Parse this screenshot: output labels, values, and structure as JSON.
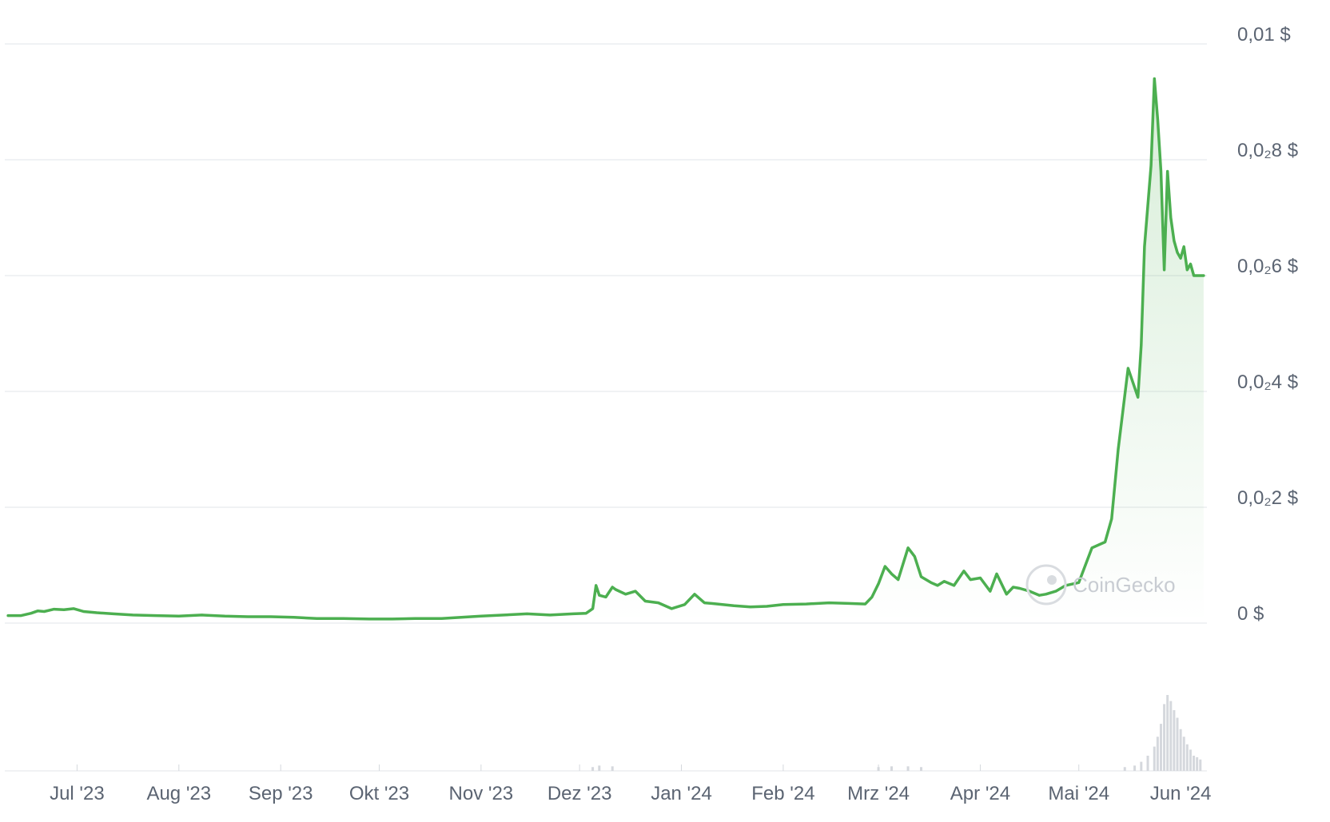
{
  "chart_data": {
    "type": "area",
    "title": "",
    "xlabel": "",
    "ylabel": "",
    "currency_suffix": "$",
    "y_ticks": [
      {
        "value": 0.0,
        "label": "0 $"
      },
      {
        "value": 0.002,
        "label": "0,0₂2 $"
      },
      {
        "value": 0.004,
        "label": "0,0₂4 $"
      },
      {
        "value": 0.006,
        "label": "0,0₂6 $"
      },
      {
        "value": 0.008,
        "label": "0,0₂8 $"
      },
      {
        "value": 0.01,
        "label": "0,01 $"
      }
    ],
    "ylim": [
      0,
      0.01
    ],
    "x_range": [
      "2023-06-09",
      "2024-06-09"
    ],
    "x_ticks": [
      {
        "date": "2023-07-01",
        "label": "Jul '23"
      },
      {
        "date": "2023-08-01",
        "label": "Aug '23"
      },
      {
        "date": "2023-09-01",
        "label": "Sep '23"
      },
      {
        "date": "2023-10-01",
        "label": "Okt '23"
      },
      {
        "date": "2023-11-01",
        "label": "Nov '23"
      },
      {
        "date": "2023-12-01",
        "label": "Dez '23"
      },
      {
        "date": "2024-01-01",
        "label": "Jan '24"
      },
      {
        "date": "2024-02-01",
        "label": "Feb '24"
      },
      {
        "date": "2024-03-01",
        "label": "Mrz '24"
      },
      {
        "date": "2024-04-01",
        "label": "Apr '24"
      },
      {
        "date": "2024-05-01",
        "label": "Mai '24"
      },
      {
        "date": "2024-06-01",
        "label": "Jun '24"
      }
    ],
    "grid": true,
    "line_color": "#4caf50",
    "fill_color": "#4caf50",
    "volume_color": "#d5d8dd",
    "watermark": "CoinGecko",
    "series": [
      {
        "x": [
          "2023-06-10",
          "2023-06-14",
          "2023-06-17",
          "2023-06-19",
          "2023-06-21",
          "2023-06-24",
          "2023-06-27",
          "2023-06-30",
          "2023-07-03",
          "2023-07-07",
          "2023-07-12",
          "2023-07-18",
          "2023-07-25",
          "2023-08-01",
          "2023-08-08",
          "2023-08-15",
          "2023-08-22",
          "2023-08-29",
          "2023-09-05",
          "2023-09-12",
          "2023-09-20",
          "2023-09-28",
          "2023-10-05",
          "2023-10-12",
          "2023-10-20",
          "2023-10-26",
          "2023-11-01",
          "2023-11-08",
          "2023-11-15",
          "2023-11-22",
          "2023-11-29",
          "2023-12-03",
          "2023-12-05",
          "2023-12-06",
          "2023-12-07",
          "2023-12-09",
          "2023-12-11",
          "2023-12-12",
          "2023-12-15",
          "2023-12-18",
          "2023-12-21",
          "2023-12-25",
          "2023-12-29",
          "2024-01-02",
          "2024-01-05",
          "2024-01-08",
          "2024-01-12",
          "2024-01-17",
          "2024-01-22",
          "2024-01-27",
          "2024-02-01",
          "2024-02-08",
          "2024-02-15",
          "2024-02-21",
          "2024-02-26",
          "2024-02-28",
          "2024-03-01",
          "2024-03-03",
          "2024-03-05",
          "2024-03-07",
          "2024-03-10",
          "2024-03-12",
          "2024-03-14",
          "2024-03-17",
          "2024-03-19",
          "2024-03-21",
          "2024-03-24",
          "2024-03-27",
          "2024-03-29",
          "2024-04-01",
          "2024-04-04",
          "2024-04-06",
          "2024-04-09",
          "2024-04-11",
          "2024-04-13",
          "2024-04-16",
          "2024-04-19",
          "2024-04-21",
          "2024-04-24",
          "2024-04-27",
          "2024-05-01",
          "2024-05-05",
          "2024-05-09",
          "2024-05-11",
          "2024-05-13",
          "2024-05-16",
          "2024-05-19",
          "2024-05-20",
          "2024-05-21",
          "2024-05-23",
          "2024-05-24",
          "2024-05-25",
          "2024-05-26",
          "2024-05-27",
          "2024-05-28",
          "2024-05-29",
          "2024-05-30",
          "2024-05-31",
          "2024-06-01",
          "2024-06-02",
          "2024-06-03",
          "2024-06-04",
          "2024-06-05",
          "2024-06-06",
          "2024-06-07",
          "2024-06-08"
        ],
        "y": [
          0.00013,
          0.00013,
          0.00017,
          0.00021,
          0.0002,
          0.00024,
          0.00023,
          0.00025,
          0.0002,
          0.00018,
          0.00016,
          0.00014,
          0.00013,
          0.00012,
          0.00014,
          0.00012,
          0.00011,
          0.00011,
          0.0001,
          8e-05,
          8e-05,
          7e-05,
          7e-05,
          8e-05,
          8e-05,
          0.0001,
          0.00012,
          0.00014,
          0.00016,
          0.00014,
          0.00016,
          0.00017,
          0.00025,
          0.00065,
          0.00048,
          0.00045,
          0.00062,
          0.00058,
          0.0005,
          0.00055,
          0.00038,
          0.00035,
          0.00025,
          0.00032,
          0.0005,
          0.00035,
          0.00033,
          0.0003,
          0.00028,
          0.00029,
          0.00032,
          0.00033,
          0.00035,
          0.00034,
          0.00033,
          0.00045,
          0.00068,
          0.00098,
          0.00085,
          0.00075,
          0.0013,
          0.00115,
          0.0008,
          0.0007,
          0.00065,
          0.00072,
          0.00065,
          0.0009,
          0.00075,
          0.00078,
          0.00055,
          0.00085,
          0.0005,
          0.00062,
          0.0006,
          0.00055,
          0.00048,
          0.0005,
          0.00055,
          0.00065,
          0.0007,
          0.0013,
          0.0014,
          0.0018,
          0.003,
          0.0044,
          0.0039,
          0.0048,
          0.0065,
          0.0079,
          0.0094,
          0.0087,
          0.0078,
          0.0061,
          0.0078,
          0.007,
          0.0066,
          0.0064,
          0.0063,
          0.0065,
          0.0061,
          0.0062,
          0.006,
          0.006,
          0.006,
          0.006
        ]
      }
    ],
    "volume": {
      "x": [
        "2023-12-05",
        "2023-12-07",
        "2023-12-11",
        "2024-03-01",
        "2024-03-05",
        "2024-03-10",
        "2024-03-14",
        "2024-05-15",
        "2024-05-18",
        "2024-05-20",
        "2024-05-22",
        "2024-05-24",
        "2024-05-25",
        "2024-05-26",
        "2024-05-27",
        "2024-05-28",
        "2024-05-29",
        "2024-05-30",
        "2024-05-31",
        "2024-06-01",
        "2024-06-02",
        "2024-06-03",
        "2024-06-04",
        "2024-06-05",
        "2024-06-06",
        "2024-06-07"
      ],
      "y": [
        0.05,
        0.07,
        0.06,
        0.05,
        0.06,
        0.06,
        0.05,
        0.05,
        0.07,
        0.12,
        0.2,
        0.32,
        0.45,
        0.62,
        0.88,
        1.0,
        0.92,
        0.8,
        0.7,
        0.55,
        0.45,
        0.35,
        0.28,
        0.2,
        0.18,
        0.15
      ]
    }
  }
}
